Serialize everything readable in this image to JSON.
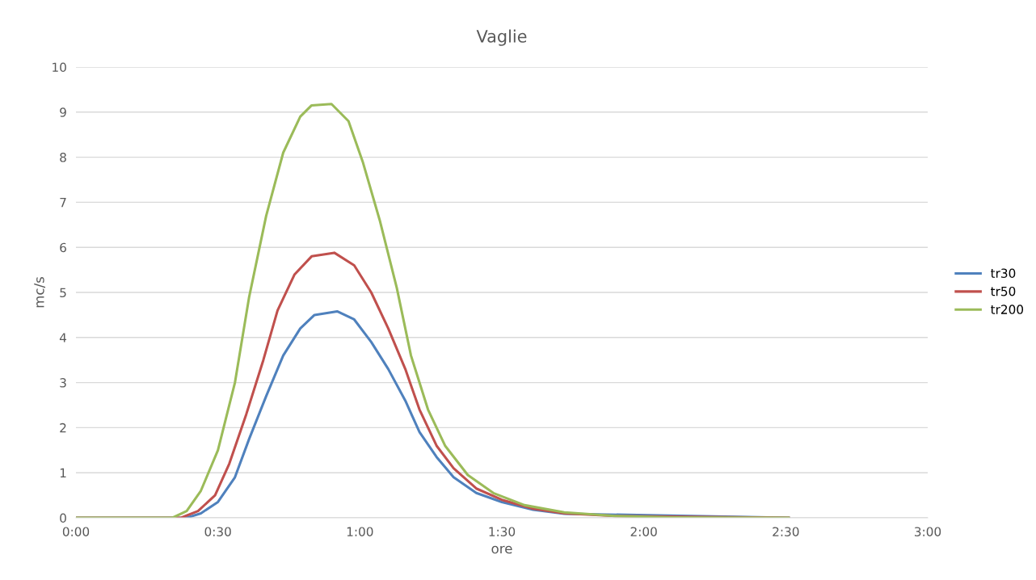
{
  "chart_data": {
    "type": "line",
    "title": "Vaglie",
    "xlabel": "ore",
    "ylabel": "mc/s",
    "xlim": [
      0,
      3
    ],
    "xticks": [
      {
        "value": 0,
        "label": "0:00"
      },
      {
        "value": 0.5,
        "label": "0:30"
      },
      {
        "value": 1,
        "label": "1:00"
      },
      {
        "value": 1.5,
        "label": "1:30"
      },
      {
        "value": 2,
        "label": "2:00"
      },
      {
        "value": 2.5,
        "label": "2:30"
      },
      {
        "value": 3,
        "label": "3:00"
      }
    ],
    "ylim": [
      0,
      10
    ],
    "yticks": [
      0,
      1,
      2,
      3,
      4,
      5,
      6,
      7,
      8,
      9,
      10
    ],
    "grid": "y",
    "legend": "right",
    "marker": "none",
    "line_style": "solid",
    "series": [
      {
        "name": "tr30",
        "color": "#4f81bd",
        "x": [
          0,
          0.39,
          0.44,
          0.5,
          0.56,
          0.61,
          0.67,
          0.73,
          0.79,
          0.84,
          0.92,
          0.98,
          1.04,
          1.1,
          1.16,
          1.21,
          1.27,
          1.33,
          1.41,
          1.5,
          1.61,
          1.72,
          2.51
        ],
        "values": [
          0,
          0,
          0.1,
          0.35,
          0.9,
          1.75,
          2.7,
          3.6,
          4.2,
          4.5,
          4.58,
          4.4,
          3.9,
          3.3,
          2.6,
          1.9,
          1.35,
          0.9,
          0.55,
          0.35,
          0.18,
          0.09,
          0
        ]
      },
      {
        "name": "tr50",
        "color": "#c0504d",
        "x": [
          0,
          0.37,
          0.43,
          0.49,
          0.54,
          0.6,
          0.66,
          0.71,
          0.77,
          0.83,
          0.91,
          0.98,
          1.04,
          1.1,
          1.16,
          1.21,
          1.27,
          1.33,
          1.41,
          1.5,
          1.61,
          1.72,
          1.9,
          2.51
        ],
        "values": [
          0,
          0,
          0.15,
          0.5,
          1.2,
          2.3,
          3.5,
          4.6,
          5.4,
          5.8,
          5.88,
          5.6,
          5.0,
          4.2,
          3.3,
          2.4,
          1.6,
          1.1,
          0.65,
          0.4,
          0.2,
          0.1,
          0.04,
          0
        ]
      },
      {
        "name": "tr200",
        "color": "#9bbb59",
        "x": [
          0,
          0.34,
          0.39,
          0.44,
          0.5,
          0.56,
          0.61,
          0.67,
          0.73,
          0.79,
          0.83,
          0.9,
          0.96,
          1.01,
          1.07,
          1.13,
          1.18,
          1.24,
          1.3,
          1.38,
          1.47,
          1.58,
          1.72,
          1.9,
          2.1,
          2.51
        ],
        "values": [
          0,
          0,
          0.15,
          0.6,
          1.5,
          3.0,
          4.9,
          6.7,
          8.1,
          8.9,
          9.15,
          9.18,
          8.8,
          7.9,
          6.6,
          5.1,
          3.6,
          2.4,
          1.6,
          0.95,
          0.55,
          0.28,
          0.12,
          0.04,
          0.01,
          0
        ]
      }
    ]
  }
}
